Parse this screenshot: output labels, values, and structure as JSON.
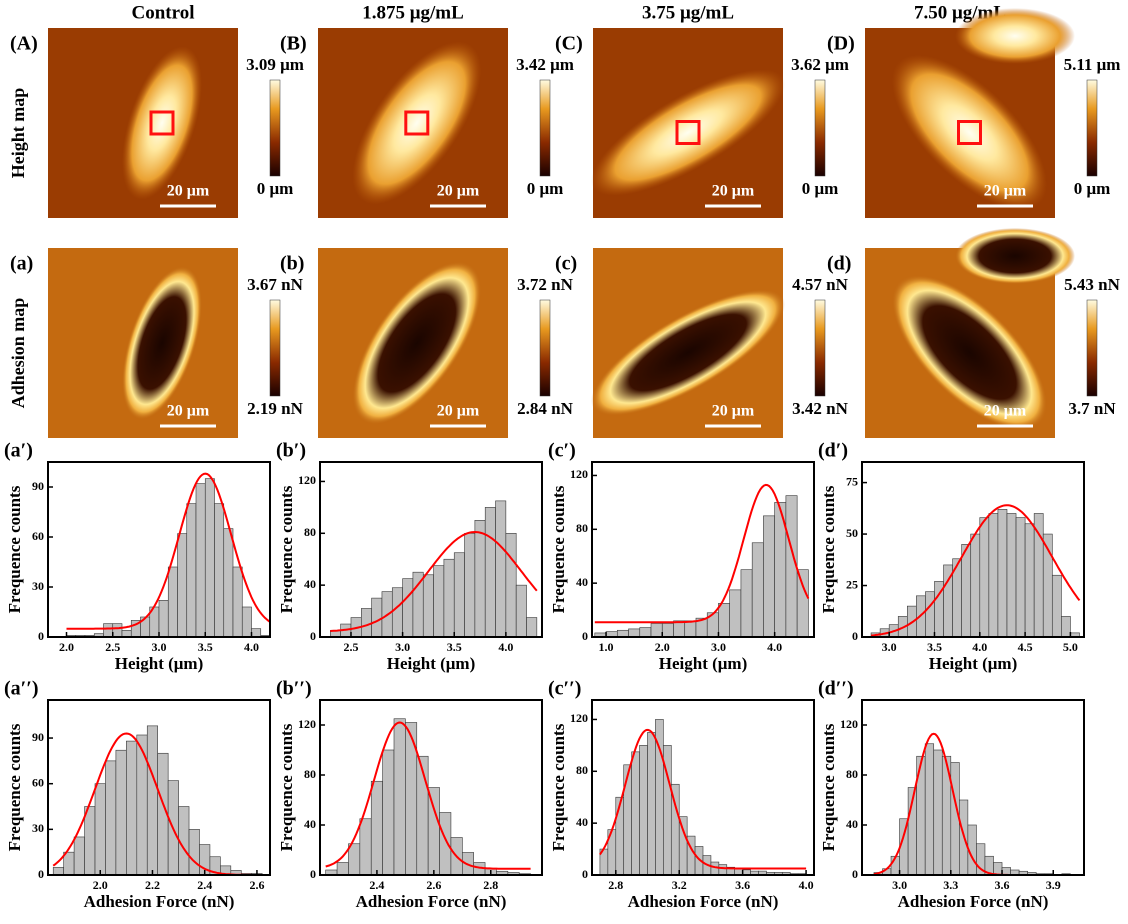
{
  "columns": [
    "Control",
    "1.875 μg/mL",
    "3.75 μg/mL",
    "7.50 μg/mL"
  ],
  "row_labels": [
    "Height map",
    "Adhesion map"
  ],
  "height_maps": [
    {
      "label": "(A)",
      "max": "3.09 μm",
      "min": "0 μm",
      "scale": "20 μm"
    },
    {
      "label": "(B)",
      "max": "3.42 μm",
      "min": "0 μm",
      "scale": "20 μm"
    },
    {
      "label": "(C)",
      "max": "3.62 μm",
      "min": "0 μm",
      "scale": "20 μm"
    },
    {
      "label": "(D)",
      "max": "5.11 μm",
      "min": "0 μm",
      "scale": "20 μm"
    }
  ],
  "adhesion_maps": [
    {
      "label": "(a)",
      "max": "3.67 nN",
      "min": "2.19 nN",
      "scale": "20 μm"
    },
    {
      "label": "(b)",
      "max": "3.72 nN",
      "min": "2.84 nN",
      "scale": "20 μm"
    },
    {
      "label": "(c)",
      "max": "4.57 nN",
      "min": "3.42 nN",
      "scale": "20 μm"
    },
    {
      "label": "(d)",
      "max": "5.43 nN",
      "min": "3.7 nN",
      "scale": "20 μm"
    }
  ],
  "chart_data": [
    {
      "type": "histogram",
      "label": "(a′)",
      "xlabel": "Height (μm)",
      "ylabel": "Frequence counts",
      "color": "#c0c0c0",
      "bins": [
        2.0,
        2.1,
        2.2,
        2.3,
        2.4,
        2.5,
        2.6,
        2.7,
        2.8,
        2.9,
        3.0,
        3.1,
        3.2,
        3.3,
        3.4,
        3.5,
        3.6,
        3.7,
        3.8,
        3.9,
        4.0,
        4.1,
        4.2
      ],
      "values": [
        1,
        1,
        1,
        2,
        8,
        8,
        4,
        10,
        12,
        18,
        22,
        42,
        62,
        80,
        92,
        95,
        80,
        65,
        42,
        18,
        5,
        1
      ],
      "xlim": [
        1.8,
        4.2
      ],
      "xticks": [
        {
          "value": 2.0,
          "label": "2.0"
        },
        2.5,
        {
          "value": 3.0,
          "label": "3.0"
        },
        3.5,
        {
          "value": 4.0,
          "label": "4.0"
        }
      ],
      "ylim": [
        0,
        105
      ],
      "yticks": [
        0,
        30,
        60,
        90
      ],
      "fit": {
        "center": 3.5,
        "width": 0.28,
        "peak": 93,
        "baseline": 5,
        "color": "#ff0000"
      }
    },
    {
      "type": "histogram",
      "label": "(b′)",
      "xlabel": "Height (μm)",
      "ylabel": "Frequence counts",
      "color": "#c0c0c0",
      "bins": [
        2.3,
        2.4,
        2.5,
        2.6,
        2.7,
        2.8,
        2.9,
        3.0,
        3.1,
        3.2,
        3.3,
        3.4,
        3.5,
        3.6,
        3.7,
        3.8,
        3.9,
        4.0,
        4.1,
        4.2,
        4.3
      ],
      "values": [
        5,
        10,
        15,
        22,
        30,
        35,
        38,
        45,
        50,
        48,
        55,
        60,
        65,
        80,
        90,
        100,
        105,
        80,
        40,
        15
      ],
      "xlim": [
        2.2,
        4.35
      ],
      "xticks": [
        2.5,
        {
          "value": 3.0,
          "label": "3.0"
        },
        3.5,
        {
          "value": 4.0,
          "label": "4.0"
        }
      ],
      "ylim": [
        0,
        135
      ],
      "yticks": [
        0,
        40,
        80,
        120
      ],
      "fit": {
        "center": 3.7,
        "width": 0.45,
        "peak": 77,
        "baseline": 4,
        "color": "#ff0000"
      }
    },
    {
      "type": "histogram",
      "label": "(c′)",
      "xlabel": "Height (μm)",
      "ylabel": "Frequence counts",
      "color": "#c0c0c0",
      "bins": [
        0.8,
        1.0,
        1.2,
        1.4,
        1.6,
        1.8,
        2.0,
        2.2,
        2.4,
        2.6,
        2.8,
        3.0,
        3.2,
        3.4,
        3.6,
        3.8,
        4.0,
        4.2,
        4.4,
        4.6
      ],
      "values": [
        3,
        4,
        5,
        6,
        7,
        10,
        10,
        12,
        12,
        14,
        18,
        25,
        35,
        50,
        70,
        90,
        100,
        105,
        50
      ],
      "xlim": [
        0.75,
        4.7
      ],
      "xticks": [
        {
          "value": 1.0,
          "label": "1.0"
        },
        {
          "value": 2.0,
          "label": "2.0"
        },
        {
          "value": 3.0,
          "label": "3.0"
        },
        {
          "value": 4.0,
          "label": "4.0"
        }
      ],
      "ylim": [
        0,
        130
      ],
      "yticks": [
        0,
        40,
        80,
        120
      ],
      "fit": {
        "center": 3.85,
        "width": 0.4,
        "peak": 102,
        "baseline": 11,
        "color": "#ff0000"
      }
    },
    {
      "type": "histogram",
      "label": "(d′)",
      "xlabel": "Height (μm)",
      "ylabel": "Frequence counts",
      "color": "#c0c0c0",
      "bins": [
        2.8,
        2.9,
        3.0,
        3.1,
        3.2,
        3.3,
        3.4,
        3.5,
        3.6,
        3.7,
        3.8,
        3.9,
        4.0,
        4.1,
        4.2,
        4.3,
        4.4,
        4.5,
        4.6,
        4.7,
        4.8,
        4.9,
        5.0,
        5.1
      ],
      "values": [
        2,
        4,
        6,
        10,
        15,
        20,
        22,
        27,
        35,
        38,
        45,
        50,
        58,
        60,
        62,
        60,
        58,
        55,
        60,
        50,
        30,
        10,
        2
      ],
      "xlim": [
        2.7,
        5.15
      ],
      "xticks": [
        {
          "value": 3.0,
          "label": "3.0"
        },
        3.5,
        {
          "value": 4.0,
          "label": "4.0"
        },
        4.5,
        {
          "value": 5.0,
          "label": "5.0"
        }
      ],
      "ylim": [
        0,
        85
      ],
      "yticks": [
        0,
        25,
        50,
        75
      ],
      "fit": {
        "center": 4.3,
        "width": 0.5,
        "peak": 64,
        "baseline": 0,
        "color": "#ff0000"
      }
    },
    {
      "type": "histogram",
      "label": "(a′′)",
      "xlabel": "Adhesion Force (nN)",
      "ylabel": "Frequence counts",
      "color": "#c0c0c0",
      "bins": [
        1.82,
        1.86,
        1.9,
        1.94,
        1.98,
        2.02,
        2.06,
        2.1,
        2.14,
        2.18,
        2.22,
        2.26,
        2.3,
        2.34,
        2.38,
        2.42,
        2.46,
        2.5,
        2.54,
        2.58,
        2.62
      ],
      "values": [
        5,
        15,
        25,
        45,
        60,
        75,
        82,
        88,
        92,
        98,
        80,
        62,
        45,
        30,
        20,
        12,
        6,
        3,
        1,
        1
      ],
      "xlim": [
        1.8,
        2.65
      ],
      "xticks": [
        {
          "value": 2.0,
          "label": "2.0"
        },
        2.2,
        2.4,
        2.6
      ],
      "ylim": [
        0,
        115
      ],
      "yticks": [
        0,
        30,
        60,
        90
      ],
      "fit": {
        "center": 2.1,
        "width": 0.12,
        "peak": 93,
        "baseline": 0,
        "color": "#ff0000"
      }
    },
    {
      "type": "histogram",
      "label": "(b′′)",
      "xlabel": "Adhesion Force (nN)",
      "ylabel": "Frequence counts",
      "color": "#c0c0c0",
      "bins": [
        2.22,
        2.26,
        2.3,
        2.34,
        2.38,
        2.42,
        2.46,
        2.5,
        2.54,
        2.58,
        2.62,
        2.66,
        2.7,
        2.74,
        2.78,
        2.82,
        2.86,
        2.9,
        2.94
      ],
      "values": [
        4,
        10,
        25,
        45,
        75,
        100,
        125,
        122,
        95,
        70,
        50,
        30,
        18,
        10,
        5,
        3,
        2,
        1
      ],
      "xlim": [
        2.2,
        2.98
      ],
      "xticks": [
        2.4,
        2.6,
        2.8
      ],
      "ylim": [
        0,
        140
      ],
      "yticks": [
        0,
        40,
        80,
        120
      ],
      "fit": {
        "center": 2.48,
        "width": 0.09,
        "peak": 117,
        "baseline": 5,
        "color": "#ff0000"
      }
    },
    {
      "type": "histogram",
      "label": "(c′′)",
      "xlabel": "Adhesion Force (nN)",
      "ylabel": "Frequence counts",
      "color": "#c0c0c0",
      "bins": [
        2.7,
        2.75,
        2.8,
        2.85,
        2.9,
        2.95,
        3.0,
        3.05,
        3.1,
        3.15,
        3.2,
        3.25,
        3.3,
        3.35,
        3.4,
        3.45,
        3.5,
        3.55,
        3.6,
        3.65,
        3.7,
        3.75,
        3.8,
        3.85,
        3.9,
        3.95,
        4.0
      ],
      "values": [
        20,
        35,
        60,
        85,
        95,
        100,
        110,
        120,
        100,
        70,
        45,
        30,
        22,
        15,
        10,
        8,
        6,
        5,
        4,
        3,
        3,
        2,
        2,
        2,
        1,
        1
      ],
      "xlim": [
        2.65,
        4.05
      ],
      "xticks": [
        2.8,
        3.2,
        3.6,
        {
          "value": 4.0,
          "label": "4.0"
        }
      ],
      "ylim": [
        0,
        135
      ],
      "yticks": [
        0,
        40,
        80,
        120
      ],
      "fit": {
        "center": 3.0,
        "width": 0.14,
        "peak": 107,
        "baseline": 5,
        "color": "#ff0000"
      }
    },
    {
      "type": "histogram",
      "label": "(d′′)",
      "xlabel": "Adhesion Force (nN)",
      "ylabel": "Frequence counts",
      "color": "#c0c0c0",
      "bins": [
        2.85,
        2.9,
        2.95,
        3.0,
        3.05,
        3.1,
        3.15,
        3.2,
        3.25,
        3.3,
        3.35,
        3.4,
        3.45,
        3.5,
        3.55,
        3.6,
        3.65,
        3.7,
        3.75,
        3.8,
        3.85,
        3.9,
        3.95,
        4.0,
        4.05
      ],
      "values": [
        2,
        5,
        15,
        45,
        70,
        95,
        105,
        100,
        95,
        90,
        60,
        40,
        25,
        15,
        10,
        6,
        4,
        3,
        2,
        1,
        1,
        0,
        1,
        0
      ],
      "xlim": [
        2.78,
        4.08
      ],
      "xticks": [
        {
          "value": 3.0,
          "label": "3.0"
        },
        3.3,
        3.6,
        3.9
      ],
      "ylim": [
        0,
        140
      ],
      "yticks": [
        0,
        40,
        80,
        120
      ],
      "fit": {
        "center": 3.2,
        "width": 0.11,
        "peak": 113,
        "baseline": 0,
        "color": "#ff0000"
      }
    }
  ]
}
